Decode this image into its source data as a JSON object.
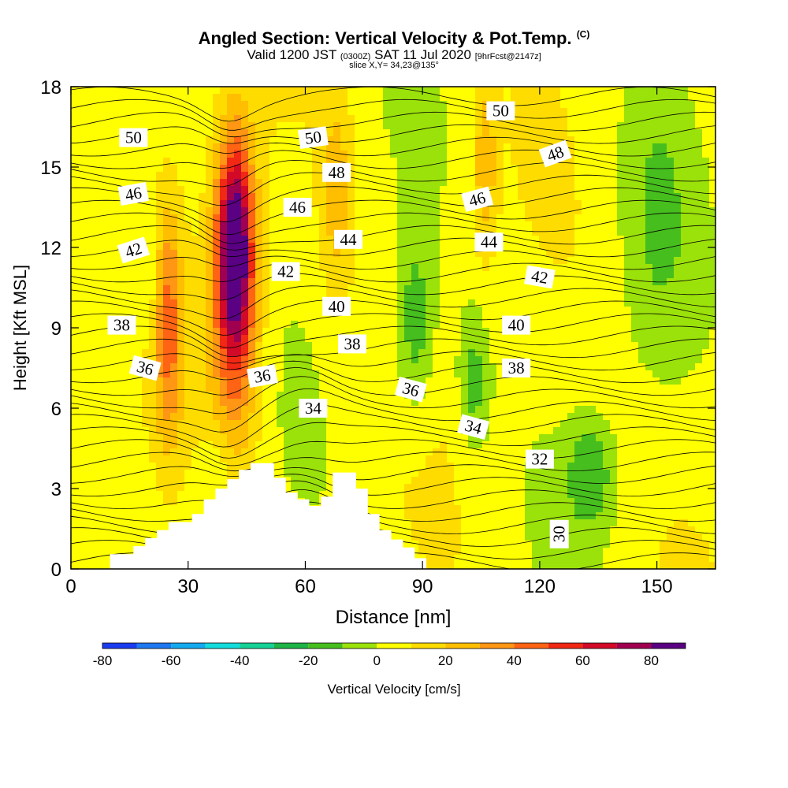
{
  "header": {
    "title": "Angled Section: Vertical Velocity & Pot.Temp.",
    "copyright": "(C)",
    "valid_prefix": "Valid 1200 JST",
    "valid_utc": "(0300Z)",
    "valid_date": "SAT 11 Jul 2020",
    "forecast": "[9hrFcst@2147z]",
    "slice": "slice X,Y= 34,23@135°"
  },
  "chart_data": {
    "type": "heatmap",
    "xlabel": "Distance [nm]",
    "ylabel": "Height [Kft MSL]",
    "xlim": [
      0,
      165
    ],
    "ylim": [
      0,
      18
    ],
    "x_ticks": [
      0,
      30,
      60,
      90,
      120,
      150
    ],
    "y_ticks": [
      0,
      3,
      6,
      9,
      12,
      15,
      18
    ],
    "colorbar": {
      "label": "Vertical Velocity [cm/s]",
      "ticks": [
        -80,
        -60,
        -40,
        -20,
        0,
        20,
        40,
        60,
        80
      ],
      "bins": [
        {
          "min": -80,
          "max": -70,
          "color": "#1a3cf0"
        },
        {
          "min": -70,
          "max": -60,
          "color": "#1e78f0"
        },
        {
          "min": -60,
          "max": -50,
          "color": "#14aaf0"
        },
        {
          "min": -50,
          "max": -40,
          "color": "#14dcdc"
        },
        {
          "min": -40,
          "max": -30,
          "color": "#14d296"
        },
        {
          "min": -30,
          "max": -20,
          "color": "#1eb446"
        },
        {
          "min": -20,
          "max": -10,
          "color": "#46be1e"
        },
        {
          "min": -10,
          "max": 0,
          "color": "#9be10a"
        },
        {
          "min": 0,
          "max": 10,
          "color": "#ffff00"
        },
        {
          "min": 10,
          "max": 20,
          "color": "#ffdc00"
        },
        {
          "min": 20,
          "max": 30,
          "color": "#ffbe00"
        },
        {
          "min": 30,
          "max": 40,
          "color": "#ff9614"
        },
        {
          "min": 40,
          "max": 50,
          "color": "#ff6414"
        },
        {
          "min": 50,
          "max": 60,
          "color": "#f02814"
        },
        {
          "min": 60,
          "max": 70,
          "color": "#d20a28"
        },
        {
          "min": 70,
          "max": 80,
          "color": "#a00050"
        },
        {
          "min": 80,
          "max": 90,
          "color": "#5a0082"
        }
      ]
    },
    "terrain_profile": [
      [
        0,
        0
      ],
      [
        10,
        0
      ],
      [
        10,
        0.55
      ],
      [
        16,
        0.55
      ],
      [
        16,
        0.85
      ],
      [
        19,
        0.85
      ],
      [
        19,
        1.15
      ],
      [
        22,
        1.15
      ],
      [
        22,
        1.45
      ],
      [
        25,
        1.45
      ],
      [
        25,
        1.75
      ],
      [
        31,
        1.75
      ],
      [
        31,
        2.05
      ],
      [
        34,
        2.05
      ],
      [
        34,
        2.6
      ],
      [
        37,
        2.6
      ],
      [
        37,
        3.0
      ],
      [
        40,
        3.0
      ],
      [
        40,
        3.35
      ],
      [
        43,
        3.35
      ],
      [
        43,
        3.7
      ],
      [
        46,
        3.7
      ],
      [
        46,
        3.95
      ],
      [
        52,
        3.95
      ],
      [
        52,
        3.4
      ],
      [
        55,
        3.4
      ],
      [
        55,
        2.85
      ],
      [
        58,
        2.85
      ],
      [
        58,
        2.6
      ],
      [
        61,
        2.6
      ],
      [
        61,
        2.35
      ],
      [
        64,
        2.35
      ],
      [
        64,
        2.7
      ],
      [
        67,
        2.7
      ],
      [
        67,
        3.6
      ],
      [
        73,
        3.6
      ],
      [
        73,
        3.0
      ],
      [
        76,
        3.0
      ],
      [
        76,
        2.05
      ],
      [
        79,
        2.05
      ],
      [
        79,
        1.45
      ],
      [
        82,
        1.45
      ],
      [
        82,
        1.1
      ],
      [
        85,
        1.1
      ],
      [
        85,
        0.8
      ],
      [
        88,
        0.8
      ],
      [
        88,
        0.4
      ],
      [
        91,
        0.4
      ],
      [
        91,
        0
      ]
    ],
    "theta_contours": {
      "units": "K",
      "labels": [
        {
          "value": "50",
          "x": 16,
          "y": 16.1,
          "angle": 0
        },
        {
          "value": "50",
          "x": 62,
          "y": 16.1,
          "angle": -8
        },
        {
          "value": "50",
          "x": 110,
          "y": 17.1,
          "angle": 0
        },
        {
          "value": "48",
          "x": 68,
          "y": 14.8,
          "angle": 0
        },
        {
          "value": "48",
          "x": 124,
          "y": 15.5,
          "angle": -20
        },
        {
          "value": "46",
          "x": 16,
          "y": 14.0,
          "angle": -10
        },
        {
          "value": "46",
          "x": 58,
          "y": 13.5,
          "angle": 0
        },
        {
          "value": "46",
          "x": 104,
          "y": 13.8,
          "angle": -15
        },
        {
          "value": "44",
          "x": 71,
          "y": 12.3,
          "angle": 0
        },
        {
          "value": "44",
          "x": 107,
          "y": 12.2,
          "angle": 0
        },
        {
          "value": "42",
          "x": 16,
          "y": 11.9,
          "angle": -18
        },
        {
          "value": "42",
          "x": 55,
          "y": 11.1,
          "angle": 0
        },
        {
          "value": "42",
          "x": 120,
          "y": 10.9,
          "angle": 10
        },
        {
          "value": "40",
          "x": 68,
          "y": 9.8,
          "angle": 0
        },
        {
          "value": "40",
          "x": 114,
          "y": 9.1,
          "angle": 0
        },
        {
          "value": "38",
          "x": 13,
          "y": 9.1,
          "angle": 0
        },
        {
          "value": "38",
          "x": 72,
          "y": 8.4,
          "angle": 0
        },
        {
          "value": "38",
          "x": 114,
          "y": 7.5,
          "angle": 0
        },
        {
          "value": "36",
          "x": 19,
          "y": 7.5,
          "angle": 15
        },
        {
          "value": "36",
          "x": 49,
          "y": 7.2,
          "angle": -10
        },
        {
          "value": "36",
          "x": 87,
          "y": 6.7,
          "angle": 15
        },
        {
          "value": "34",
          "x": 62,
          "y": 6.0,
          "angle": 0
        },
        {
          "value": "34",
          "x": 103,
          "y": 5.3,
          "angle": 15
        },
        {
          "value": "32",
          "x": 120,
          "y": 4.1,
          "angle": 0
        },
        {
          "value": "30",
          "x": 125,
          "y": 1.3,
          "angle": -90
        }
      ]
    }
  }
}
